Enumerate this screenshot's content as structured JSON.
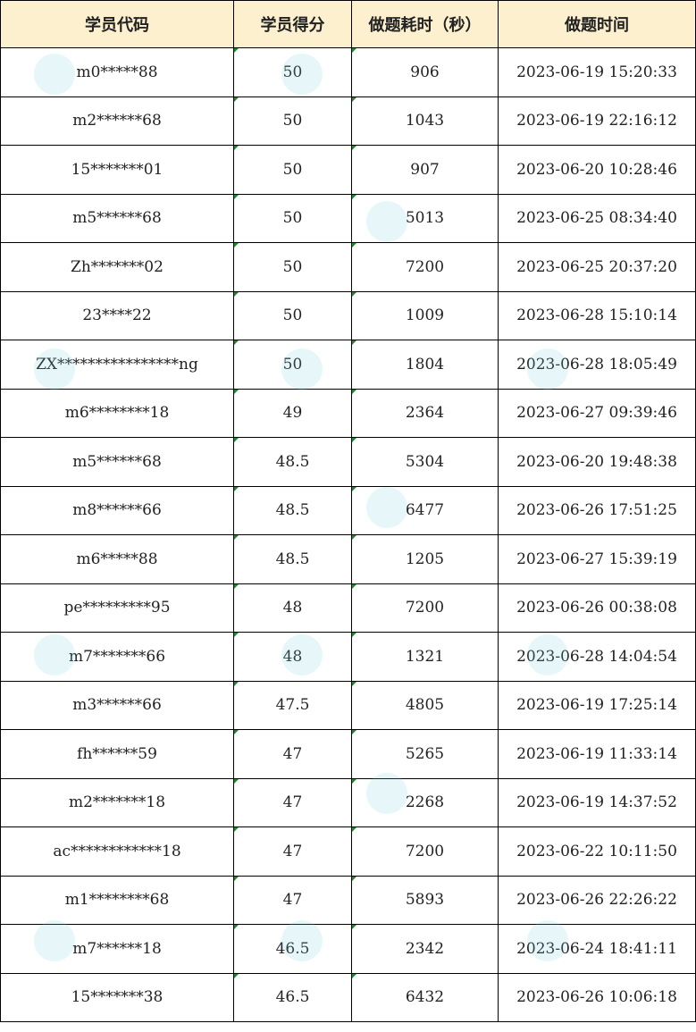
{
  "table": {
    "headers": [
      "学员代码",
      "学员得分",
      "做题耗时（秒）",
      "做题时间"
    ],
    "rows": [
      [
        "m0*****88",
        "50",
        "906",
        "2023-06-19 15:20:33"
      ],
      [
        "m2******68",
        "50",
        "1043",
        "2023-06-19 22:16:12"
      ],
      [
        "15*******01",
        "50",
        "907",
        "2023-06-20 10:28:46"
      ],
      [
        "m5******68",
        "50",
        "5013",
        "2023-06-25 08:34:40"
      ],
      [
        "Zh*******02",
        "50",
        "7200",
        "2023-06-25 20:37:20"
      ],
      [
        "23****22",
        "50",
        "1009",
        "2023-06-28 15:10:14"
      ],
      [
        "ZX****************ng",
        "50",
        "1804",
        "2023-06-28 18:05:49"
      ],
      [
        "m6********18",
        "49",
        "2364",
        "2023-06-27 09:39:46"
      ],
      [
        "m5******68",
        "48.5",
        "5304",
        "2023-06-20 19:48:38"
      ],
      [
        "m8******66",
        "48.5",
        "6477",
        "2023-06-26 17:51:25"
      ],
      [
        "m6*****88",
        "48.5",
        "1205",
        "2023-06-27 15:39:19"
      ],
      [
        "pe*********95",
        "48",
        "7200",
        "2023-06-26 00:38:08"
      ],
      [
        "m7*******66",
        "48",
        "1321",
        "2023-06-28 14:04:54"
      ],
      [
        "m3******66",
        "47.5",
        "4805",
        "2023-06-19 17:25:14"
      ],
      [
        "fh******59",
        "47",
        "5265",
        "2023-06-19 11:33:14"
      ],
      [
        "m2*******18",
        "47",
        "2268",
        "2023-06-19 14:37:52"
      ],
      [
        "ac************18",
        "47",
        "7200",
        "2023-06-22 10:11:50"
      ],
      [
        "m1********68",
        "47",
        "5893",
        "2023-06-26 22:26:22"
      ],
      [
        "m7******18",
        "46.5",
        "2342",
        "2023-06-24 18:41:11"
      ],
      [
        "15*******38",
        "46.5",
        "6432",
        "2023-06-26 10:06:18"
      ]
    ]
  },
  "colors": {
    "header_bg": "#fdf0cf",
    "border": "#000000",
    "error_indicator": "#1a8a2a"
  }
}
